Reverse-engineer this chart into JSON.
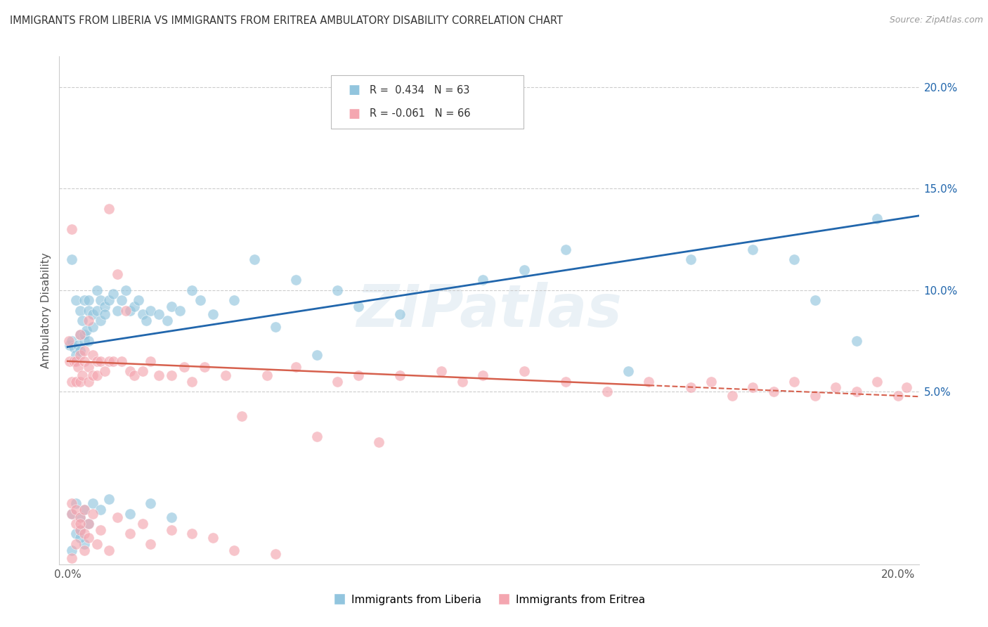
{
  "title": "IMMIGRANTS FROM LIBERIA VS IMMIGRANTS FROM ERITREA AMBULATORY DISABILITY CORRELATION CHART",
  "source": "Source: ZipAtlas.com",
  "ylabel": "Ambulatory Disability",
  "y_ticks": [
    0.05,
    0.1,
    0.15,
    0.2
  ],
  "y_tick_labels": [
    "5.0%",
    "10.0%",
    "15.0%",
    "20.0%"
  ],
  "xmin": -0.002,
  "xmax": 0.205,
  "ymin": -0.035,
  "ymax": 0.215,
  "liberia_color": "#92c5de",
  "eritrea_color": "#f4a6b0",
  "liberia_line_color": "#2166ac",
  "eritrea_line_color": "#d6604d",
  "watermark": "ZIPatlas",
  "liberia_x": [
    0.0005,
    0.001,
    0.001,
    0.0015,
    0.002,
    0.002,
    0.0025,
    0.003,
    0.003,
    0.003,
    0.0035,
    0.004,
    0.004,
    0.004,
    0.0045,
    0.005,
    0.005,
    0.005,
    0.006,
    0.006,
    0.007,
    0.007,
    0.008,
    0.008,
    0.009,
    0.009,
    0.01,
    0.011,
    0.012,
    0.013,
    0.014,
    0.015,
    0.016,
    0.017,
    0.018,
    0.019,
    0.02,
    0.022,
    0.024,
    0.025,
    0.027,
    0.03,
    0.032,
    0.035,
    0.04,
    0.045,
    0.05,
    0.055,
    0.06,
    0.065,
    0.07,
    0.08,
    0.09,
    0.1,
    0.11,
    0.12,
    0.135,
    0.15,
    0.165,
    0.175,
    0.18,
    0.19,
    0.195
  ],
  "liberia_y": [
    0.073,
    0.115,
    0.075,
    0.072,
    0.095,
    0.068,
    0.073,
    0.09,
    0.078,
    0.07,
    0.085,
    0.095,
    0.075,
    0.078,
    0.08,
    0.095,
    0.09,
    0.075,
    0.088,
    0.082,
    0.1,
    0.09,
    0.095,
    0.085,
    0.092,
    0.088,
    0.095,
    0.098,
    0.09,
    0.095,
    0.1,
    0.09,
    0.092,
    0.095,
    0.088,
    0.085,
    0.09,
    0.088,
    0.085,
    0.092,
    0.09,
    0.1,
    0.095,
    0.088,
    0.095,
    0.115,
    0.082,
    0.105,
    0.068,
    0.1,
    0.092,
    0.088,
    0.19,
    0.105,
    0.11,
    0.12,
    0.06,
    0.115,
    0.12,
    0.115,
    0.095,
    0.075,
    0.135
  ],
  "eritrea_x": [
    0.0003,
    0.0005,
    0.001,
    0.001,
    0.0015,
    0.002,
    0.002,
    0.0025,
    0.003,
    0.003,
    0.003,
    0.0035,
    0.004,
    0.004,
    0.005,
    0.005,
    0.005,
    0.006,
    0.006,
    0.007,
    0.007,
    0.008,
    0.009,
    0.01,
    0.01,
    0.011,
    0.012,
    0.013,
    0.014,
    0.015,
    0.016,
    0.018,
    0.02,
    0.022,
    0.025,
    0.028,
    0.03,
    0.033,
    0.038,
    0.042,
    0.048,
    0.055,
    0.06,
    0.065,
    0.07,
    0.075,
    0.08,
    0.09,
    0.095,
    0.1,
    0.11,
    0.12,
    0.13,
    0.14,
    0.15,
    0.155,
    0.16,
    0.165,
    0.17,
    0.175,
    0.18,
    0.185,
    0.19,
    0.195,
    0.2,
    0.202
  ],
  "eritrea_y": [
    0.075,
    0.065,
    0.13,
    0.055,
    0.065,
    0.065,
    0.055,
    0.062,
    0.078,
    0.068,
    0.055,
    0.058,
    0.065,
    0.07,
    0.085,
    0.062,
    0.055,
    0.068,
    0.058,
    0.065,
    0.058,
    0.065,
    0.06,
    0.065,
    0.14,
    0.065,
    0.108,
    0.065,
    0.09,
    0.06,
    0.058,
    0.06,
    0.065,
    0.058,
    0.058,
    0.062,
    0.055,
    0.062,
    0.058,
    0.038,
    0.058,
    0.062,
    0.028,
    0.055,
    0.058,
    0.025,
    0.058,
    0.06,
    0.055,
    0.058,
    0.06,
    0.055,
    0.05,
    0.055,
    0.052,
    0.055,
    0.048,
    0.052,
    0.05,
    0.055,
    0.048,
    0.052,
    0.05,
    0.055,
    0.048,
    0.052
  ],
  "liberia_neg_x": [
    0.001,
    0.002,
    0.003,
    0.004,
    0.005,
    0.003,
    0.006,
    0.002,
    0.004,
    0.008,
    0.01,
    0.015,
    0.02,
    0.025,
    0.003,
    0.001
  ],
  "liberia_neg_y": [
    -0.01,
    -0.005,
    -0.012,
    -0.008,
    -0.015,
    -0.018,
    -0.005,
    -0.02,
    -0.025,
    -0.008,
    -0.003,
    -0.01,
    -0.005,
    -0.012,
    -0.022,
    -0.028
  ],
  "eritrea_neg_x": [
    0.001,
    0.001,
    0.002,
    0.002,
    0.003,
    0.003,
    0.004,
    0.004,
    0.005,
    0.005,
    0.006,
    0.007,
    0.008,
    0.01,
    0.012,
    0.015,
    0.018,
    0.02,
    0.025,
    0.03,
    0.035,
    0.04,
    0.05,
    0.001,
    0.002,
    0.003,
    0.004
  ],
  "eritrea_neg_y": [
    -0.005,
    -0.01,
    -0.008,
    -0.015,
    -0.012,
    -0.018,
    -0.008,
    -0.02,
    -0.015,
    -0.022,
    -0.01,
    -0.025,
    -0.018,
    -0.028,
    -0.012,
    -0.02,
    -0.015,
    -0.025,
    -0.018,
    -0.02,
    -0.022,
    -0.028,
    -0.03,
    -0.032,
    -0.025,
    -0.015,
    -0.028
  ]
}
